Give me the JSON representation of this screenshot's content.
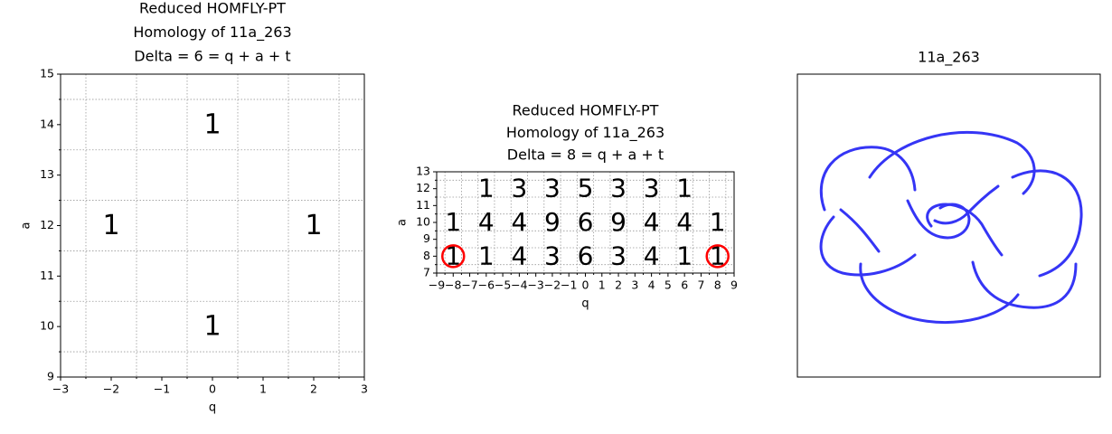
{
  "chart_data": [
    {
      "type": "text_grid",
      "title": [
        "Reduced HOMFLY-PT",
        "Homology of 11a_263",
        "Delta = 6 = q + a + t"
      ],
      "x_label": "q",
      "y_label": "a",
      "xlim": [
        -3,
        3
      ],
      "ylim": [
        9,
        15
      ],
      "xticks": [
        {
          "value": -3,
          "label": "−3"
        },
        {
          "value": -2,
          "label": "−2"
        },
        {
          "value": -1,
          "label": "−1"
        },
        0,
        1,
        2,
        3
      ],
      "yticks": [
        9,
        10,
        11,
        12,
        13,
        14,
        15
      ],
      "minor_xticks": [
        -2.5,
        -1.5,
        -0.5,
        0.5,
        1.5,
        2.5
      ],
      "minor_yticks": [
        9.5,
        10.5,
        11.5,
        12.5,
        13.5,
        14.5
      ],
      "grid": "minor",
      "points": [
        {
          "q": 0,
          "a": 14,
          "value": 1,
          "color": "#000000"
        },
        {
          "q": -2,
          "a": 12,
          "value": 1,
          "color": "#000000"
        },
        {
          "q": 2,
          "a": 12,
          "value": 1,
          "color": "#000000"
        },
        {
          "q": 0,
          "a": 10,
          "value": 1,
          "color": "#000000"
        }
      ],
      "circles": []
    },
    {
      "type": "text_grid",
      "title": [
        "Reduced HOMFLY-PT",
        "Homology of 11a_263",
        "Delta = 8 = q + a + t"
      ],
      "x_label": "q",
      "y_label": "a",
      "xlim": [
        -9,
        9
      ],
      "ylim": [
        7,
        13
      ],
      "xticks": [
        {
          "value": -9,
          "label": "−9"
        },
        {
          "value": -8,
          "label": "−8"
        },
        {
          "value": -7,
          "label": "−7"
        },
        {
          "value": -6,
          "label": "−6"
        },
        {
          "value": -5,
          "label": "−5"
        },
        {
          "value": -4,
          "label": "−4"
        },
        {
          "value": -3,
          "label": "−3"
        },
        {
          "value": -2,
          "label": "−2"
        },
        {
          "value": -1,
          "label": "−1"
        },
        0,
        1,
        2,
        3,
        4,
        5,
        6,
        7,
        8,
        9
      ],
      "yticks": [
        7,
        8,
        9,
        10,
        11,
        12,
        13
      ],
      "minor_xticks": [
        -8.5,
        -7.5,
        -6.5,
        -5.5,
        -4.5,
        -3.5,
        -2.5,
        -1.5,
        -0.5,
        0.5,
        1.5,
        2.5,
        3.5,
        4.5,
        5.5,
        6.5,
        7.5,
        8.5
      ],
      "minor_yticks": [
        7.5,
        8.5,
        9.5,
        10.5,
        11.5,
        12.5
      ],
      "grid": "minor",
      "points": [
        {
          "q": -6,
          "a": 12,
          "value": 1,
          "color": "#000000"
        },
        {
          "q": -4,
          "a": 12,
          "value": 3,
          "color": "#228b22"
        },
        {
          "q": -2,
          "a": 12,
          "value": 3,
          "color": "#228b22"
        },
        {
          "q": 0,
          "a": 12,
          "value": 5,
          "color": "#800080"
        },
        {
          "q": 2,
          "a": 12,
          "value": 3,
          "color": "#228b22"
        },
        {
          "q": 4,
          "a": 12,
          "value": 3,
          "color": "#228b22"
        },
        {
          "q": 6,
          "a": 12,
          "value": 1,
          "color": "#000000"
        },
        {
          "q": -8,
          "a": 10,
          "value": 1,
          "color": "#000000"
        },
        {
          "q": -6,
          "a": 10,
          "value": 4,
          "color": "#ff0000"
        },
        {
          "q": -4,
          "a": 10,
          "value": 4,
          "color": "#ff0000"
        },
        {
          "q": -2,
          "a": 10,
          "value": 9,
          "color": "#228b22"
        },
        {
          "q": 0,
          "a": 10,
          "value": 6,
          "color": "#ffa500"
        },
        {
          "q": 2,
          "a": 10,
          "value": 9,
          "color": "#228b22"
        },
        {
          "q": 4,
          "a": 10,
          "value": 4,
          "color": "#ff0000"
        },
        {
          "q": 6,
          "a": 10,
          "value": 4,
          "color": "#ff0000"
        },
        {
          "q": 8,
          "a": 10,
          "value": 1,
          "color": "#000000"
        },
        {
          "q": -8,
          "a": 8,
          "value": 1,
          "color": "#000000"
        },
        {
          "q": -6,
          "a": 8,
          "value": 1,
          "color": "#000000"
        },
        {
          "q": -4,
          "a": 8,
          "value": 4,
          "color": "#ff0000"
        },
        {
          "q": -2,
          "a": 8,
          "value": 3,
          "color": "#228b22"
        },
        {
          "q": 0,
          "a": 8,
          "value": 6,
          "color": "#ffa500"
        },
        {
          "q": 2,
          "a": 8,
          "value": 3,
          "color": "#228b22"
        },
        {
          "q": 4,
          "a": 8,
          "value": 4,
          "color": "#ff0000"
        },
        {
          "q": 6,
          "a": 8,
          "value": 1,
          "color": "#000000"
        },
        {
          "q": 8,
          "a": 8,
          "value": 1,
          "color": "#000000"
        }
      ],
      "circles": [
        {
          "q": -8,
          "a": 8,
          "color": "#ff0000"
        },
        {
          "q": 8,
          "a": 8,
          "color": "#ff0000"
        }
      ]
    },
    {
      "type": "knot_diagram",
      "title": "11a_263"
    }
  ]
}
